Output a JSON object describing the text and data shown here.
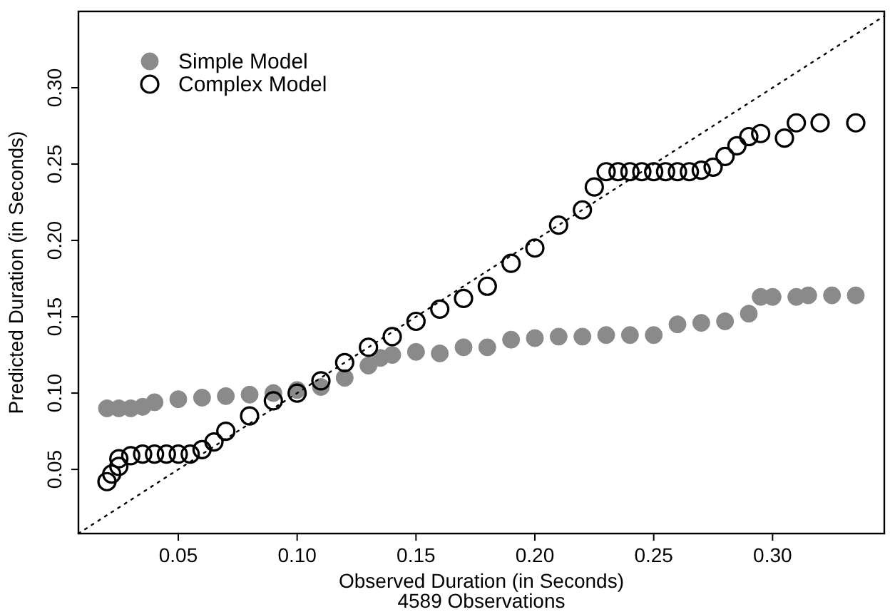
{
  "chart_data": {
    "type": "scatter",
    "xlabel": "Observed Duration (in Seconds)",
    "ylabel": "Predicted Duration (in Seconds)",
    "annotations": [
      "4589 Observations"
    ],
    "xlim": [
      0.008,
      0.347
    ],
    "ylim": [
      0.008,
      0.35
    ],
    "xticks": [
      0.05,
      {
        "value": 0.1,
        "label": "0.10"
      },
      0.15,
      {
        "value": 0.2,
        "label": "0.20"
      },
      0.25,
      {
        "value": 0.3,
        "label": "0.30"
      }
    ],
    "yticks": [
      0.05,
      {
        "value": 0.1,
        "label": "0.10"
      },
      0.15,
      {
        "value": 0.2,
        "label": "0.20"
      },
      0.25,
      {
        "value": 0.3,
        "label": "0.30"
      }
    ],
    "grid": false,
    "legend": "top left",
    "series": [
      {
        "name": "Simple Model",
        "marker": "circle",
        "color": "#8a8a8a",
        "x": [
          0.02,
          0.025,
          0.03,
          0.035,
          0.04,
          0.05,
          0.06,
          0.07,
          0.08,
          0.09,
          0.1,
          0.11,
          0.12,
          0.13,
          0.135,
          0.14,
          0.15,
          0.16,
          0.17,
          0.18,
          0.19,
          0.2,
          0.21,
          0.22,
          0.23,
          0.24,
          0.25,
          0.26,
          0.27,
          0.28,
          0.29,
          0.295,
          0.3,
          0.31,
          0.315,
          0.325,
          0.335
        ],
        "values": [
          0.09,
          0.09,
          0.09,
          0.091,
          0.094,
          0.096,
          0.097,
          0.098,
          0.099,
          0.1,
          0.102,
          0.104,
          0.11,
          0.118,
          0.123,
          0.125,
          0.127,
          0.126,
          0.13,
          0.13,
          0.135,
          0.136,
          0.137,
          0.137,
          0.138,
          0.138,
          0.138,
          0.145,
          0.146,
          0.147,
          0.152,
          0.163,
          0.163,
          0.163,
          0.164,
          0.164,
          0.164
        ]
      },
      {
        "name": "Complex Model",
        "marker": "circle",
        "color": "#000000",
        "x": [
          0.02,
          0.022,
          0.025,
          0.025,
          0.03,
          0.035,
          0.04,
          0.045,
          0.05,
          0.055,
          0.06,
          0.065,
          0.07,
          0.08,
          0.09,
          0.1,
          0.11,
          0.12,
          0.13,
          0.14,
          0.15,
          0.16,
          0.17,
          0.18,
          0.19,
          0.2,
          0.21,
          0.22,
          0.225,
          0.23,
          0.235,
          0.24,
          0.245,
          0.25,
          0.255,
          0.26,
          0.265,
          0.27,
          0.275,
          0.28,
          0.285,
          0.29,
          0.295,
          0.305,
          0.31,
          0.32,
          0.335
        ],
        "values": [
          0.042,
          0.047,
          0.052,
          0.057,
          0.059,
          0.06,
          0.06,
          0.06,
          0.06,
          0.06,
          0.063,
          0.068,
          0.075,
          0.085,
          0.095,
          0.1,
          0.108,
          0.12,
          0.13,
          0.137,
          0.147,
          0.155,
          0.162,
          0.17,
          0.185,
          0.195,
          0.21,
          0.22,
          0.235,
          0.245,
          0.245,
          0.245,
          0.245,
          0.245,
          0.245,
          0.245,
          0.245,
          0.246,
          0.248,
          0.255,
          0.262,
          0.268,
          0.27,
          0.267,
          0.277,
          0.277,
          0.277
        ]
      },
      {
        "type": "line",
        "line_style": "dotted",
        "marker": "none",
        "color": "#000000",
        "x": [
          0.008,
          0.347
        ],
        "values": [
          0.008,
          0.347
        ]
      }
    ]
  }
}
